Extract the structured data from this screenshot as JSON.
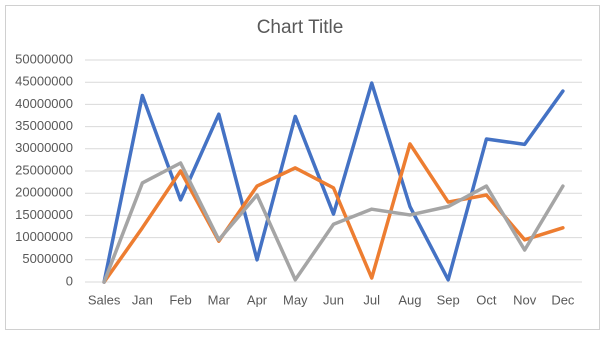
{
  "chart_data": {
    "type": "line",
    "title": "Chart Title",
    "categories": [
      "Sales",
      "Jan",
      "Feb",
      "Mar",
      "Apr",
      "May",
      "Jun",
      "Jul",
      "Aug",
      "Sep",
      "Oct",
      "Nov",
      "Dec"
    ],
    "series": [
      {
        "color": "#4472c4",
        "values": [
          0,
          42000000,
          18500000,
          37800000,
          5000000,
          37300000,
          15300000,
          44800000,
          17000000,
          500000,
          32200000,
          31000000,
          43000000
        ]
      },
      {
        "color": "#ed7d31",
        "values": [
          0,
          12200000,
          25000000,
          9200000,
          21600000,
          25700000,
          21200000,
          900000,
          31100000,
          18000000,
          19600000,
          9500000,
          12200000
        ]
      },
      {
        "color": "#a5a5a5",
        "values": [
          0,
          22300000,
          26800000,
          9500000,
          19600000,
          500000,
          13000000,
          16400000,
          15100000,
          17000000,
          21600000,
          7200000,
          21600000
        ]
      }
    ],
    "ylim": [
      0,
      50000000
    ],
    "yticks": [
      0,
      5000000,
      10000000,
      15000000,
      20000000,
      25000000,
      30000000,
      35000000,
      40000000,
      45000000,
      50000000
    ],
    "grid": true
  }
}
